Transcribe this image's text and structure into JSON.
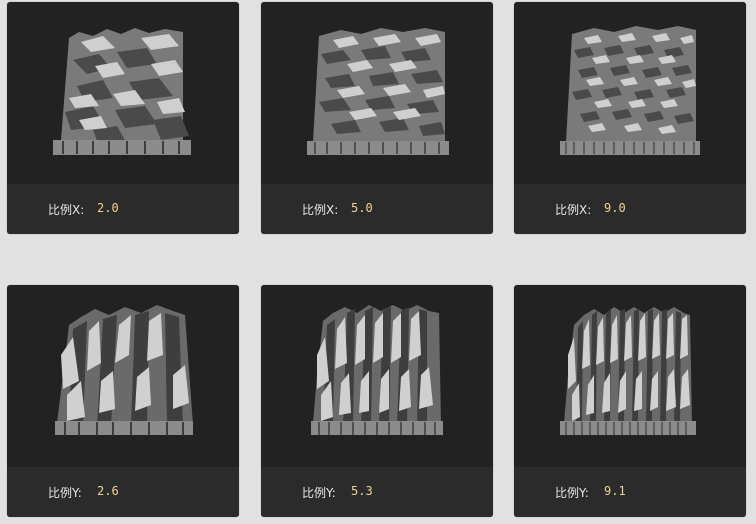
{
  "cards": [
    {
      "label": "比例X:",
      "value": "2.0"
    },
    {
      "label": "比例X:",
      "value": "5.0"
    },
    {
      "label": "比例X:",
      "value": "9.0"
    },
    {
      "label": "比例Y:",
      "value": "2.6"
    },
    {
      "label": "比例Y:",
      "value": "5.3"
    },
    {
      "label": "比例Y:",
      "value": "9.1"
    }
  ]
}
